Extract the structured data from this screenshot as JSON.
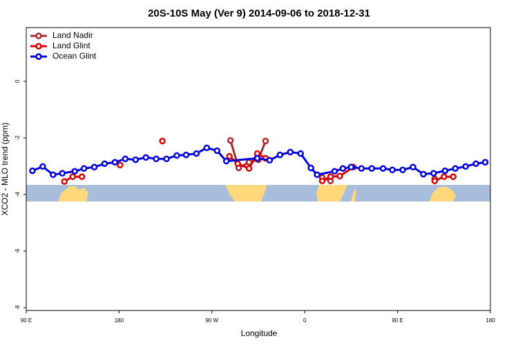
{
  "chart_data": {
    "type": "line",
    "title": "20S-10S May (Ver 9)   2014-09-06 to 2018-12-31",
    "x_label": "Longitude",
    "y_label": "XCO2 - MLO trend (ppm)",
    "xlim": [
      90,
      540
    ],
    "xticks": [
      {
        "value": 90,
        "label": "90 E"
      },
      180,
      {
        "value": 270,
        "label": "90 W"
      },
      {
        "value": 360,
        "label": "0"
      },
      {
        "value": 450,
        "label": "90 E"
      },
      {
        "value": 540,
        "label": "180"
      }
    ],
    "ylim": [
      -8.1,
      1.9
    ],
    "yticks": [
      0,
      -2,
      -4,
      -6,
      -8
    ],
    "legend": "top-left",
    "series": [
      {
        "name": "Land Nadir",
        "color": "#a52a2a",
        "x": [
          288,
          296,
          306,
          315,
          322,
          null,
          377,
          385,
          null,
          486
        ],
        "values": [
          -2.09,
          -3.06,
          -2.86,
          -2.77,
          -2.11,
          null,
          -3.4,
          -3.52,
          null,
          -3.45
        ]
      },
      {
        "name": "Land Glint",
        "color": "#e00000",
        "x": [
          127,
          135,
          144,
          null,
          181,
          null,
          222,
          null,
          287,
          295,
          306,
          314,
          322,
          null,
          377,
          385,
          394,
          407,
          null,
          486,
          495,
          504
        ],
        "values": [
          -3.54,
          -3.37,
          -3.37,
          null,
          -2.96,
          null,
          -2.11,
          null,
          -2.65,
          -2.91,
          -3.08,
          -2.55,
          -2.72,
          null,
          -3.52,
          -3.37,
          -3.35,
          -3.03,
          null,
          -3.52,
          -3.37,
          -3.37
        ]
      },
      {
        "name": "Ocean Glint",
        "color": "#0000e0",
        "x": [
          96,
          106,
          116,
          125,
          137,
          146,
          156,
          166,
          176,
          186,
          196,
          206,
          216,
          226,
          236,
          245,
          255,
          265,
          275,
          284,
          314,
          326,
          336,
          346,
          356,
          366,
          372,
          389,
          397,
          405,
          415,
          425,
          436,
          445,
          455,
          465,
          475,
          485,
          496,
          506,
          516,
          526,
          535
        ],
        "values": [
          -3.16,
          -3.01,
          -3.3,
          -3.25,
          -3.18,
          -3.08,
          -3.03,
          -2.91,
          -2.86,
          -2.74,
          -2.77,
          -2.69,
          -2.74,
          -2.74,
          -2.62,
          -2.6,
          -2.55,
          -2.35,
          -2.45,
          -2.82,
          -2.72,
          -2.79,
          -2.6,
          -2.5,
          -2.55,
          -3.06,
          -3.3,
          -3.18,
          -3.08,
          -3.03,
          -3.08,
          -3.08,
          -3.08,
          -3.13,
          -3.13,
          -3.03,
          -3.28,
          -3.25,
          -3.16,
          -3.08,
          -3.01,
          -2.91,
          -2.86
        ]
      }
    ]
  }
}
